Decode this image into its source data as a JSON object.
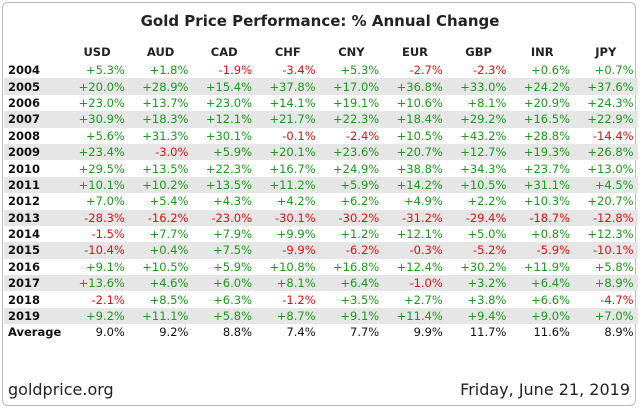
{
  "header": {
    "title": "Gold Price Performance: % Annual Change"
  },
  "table": {
    "columns": [
      "USD",
      "AUD",
      "CAD",
      "CHF",
      "CNY",
      "EUR",
      "GBP",
      "INR",
      "JPY"
    ],
    "rows": [
      {
        "label": "2004",
        "values": [
          "+5.3%",
          "+1.8%",
          "-1.9%",
          "-3.4%",
          "+5.3%",
          "-2.7%",
          "-2.3%",
          "+0.6%",
          "+0.7%"
        ]
      },
      {
        "label": "2005",
        "values": [
          "+20.0%",
          "+28.9%",
          "+15.4%",
          "+37.8%",
          "+17.0%",
          "+36.8%",
          "+33.0%",
          "+24.2%",
          "+37.6%"
        ]
      },
      {
        "label": "2006",
        "values": [
          "+23.0%",
          "+13.7%",
          "+23.0%",
          "+14.1%",
          "+19.1%",
          "+10.6%",
          "+8.1%",
          "+20.9%",
          "+24.3%"
        ]
      },
      {
        "label": "2007",
        "values": [
          "+30.9%",
          "+18.3%",
          "+12.1%",
          "+21.7%",
          "+22.3%",
          "+18.4%",
          "+29.2%",
          "+16.5%",
          "+22.9%"
        ]
      },
      {
        "label": "2008",
        "values": [
          "+5.6%",
          "+31.3%",
          "+30.1%",
          "-0.1%",
          "-2.4%",
          "+10.5%",
          "+43.2%",
          "+28.8%",
          "-14.4%"
        ]
      },
      {
        "label": "2009",
        "values": [
          "+23.4%",
          "-3.0%",
          "+5.9%",
          "+20.1%",
          "+23.6%",
          "+20.7%",
          "+12.7%",
          "+19.3%",
          "+26.8%"
        ]
      },
      {
        "label": "2010",
        "values": [
          "+29.5%",
          "+13.5%",
          "+22.3%",
          "+16.7%",
          "+24.9%",
          "+38.8%",
          "+34.3%",
          "+23.7%",
          "+13.0%"
        ]
      },
      {
        "label": "2011",
        "values": [
          "+10.1%",
          "+10.2%",
          "+13.5%",
          "+11.2%",
          "+5.9%",
          "+14.2%",
          "+10.5%",
          "+31.1%",
          "+4.5%"
        ]
      },
      {
        "label": "2012",
        "values": [
          "+7.0%",
          "+5.4%",
          "+4.3%",
          "+4.2%",
          "+6.2%",
          "+4.9%",
          "+2.2%",
          "+10.3%",
          "+20.7%"
        ]
      },
      {
        "label": "2013",
        "values": [
          "-28.3%",
          "-16.2%",
          "-23.0%",
          "-30.1%",
          "-30.2%",
          "-31.2%",
          "-29.4%",
          "-18.7%",
          "-12.8%"
        ]
      },
      {
        "label": "2014",
        "values": [
          "-1.5%",
          "+7.7%",
          "+7.9%",
          "+9.9%",
          "+1.2%",
          "+12.1%",
          "+5.0%",
          "+0.8%",
          "+12.3%"
        ]
      },
      {
        "label": "2015",
        "values": [
          "-10.4%",
          "+0.4%",
          "+7.5%",
          "-9.9%",
          "-6.2%",
          "-0.3%",
          "-5.2%",
          "-5.9%",
          "-10.1%"
        ]
      },
      {
        "label": "2016",
        "values": [
          "+9.1%",
          "+10.5%",
          "+5.9%",
          "+10.8%",
          "+16.8%",
          "+12.4%",
          "+30.2%",
          "+11.9%",
          "+5.8%"
        ]
      },
      {
        "label": "2017",
        "values": [
          "+13.6%",
          "+4.6%",
          "+6.0%",
          "+8.1%",
          "+6.4%",
          "-1.0%",
          "+3.2%",
          "+6.4%",
          "+8.9%"
        ]
      },
      {
        "label": "2018",
        "values": [
          "-2.1%",
          "+8.5%",
          "+6.3%",
          "-1.2%",
          "+3.5%",
          "+2.7%",
          "+3.8%",
          "+6.6%",
          "-4.7%"
        ]
      },
      {
        "label": "2019",
        "values": [
          "+9.2%",
          "+11.1%",
          "+5.8%",
          "+8.7%",
          "+9.1%",
          "+11.4%",
          "+9.4%",
          "+9.0%",
          "+7.0%"
        ]
      }
    ],
    "average": {
      "label": "Average",
      "values": [
        "9.0%",
        "9.2%",
        "8.8%",
        "7.4%",
        "7.7%",
        "9.9%",
        "11.7%",
        "11.6%",
        "8.9%"
      ]
    }
  },
  "footer": {
    "source": "goldprice.org",
    "date": "Friday, June 21, 2019"
  }
}
